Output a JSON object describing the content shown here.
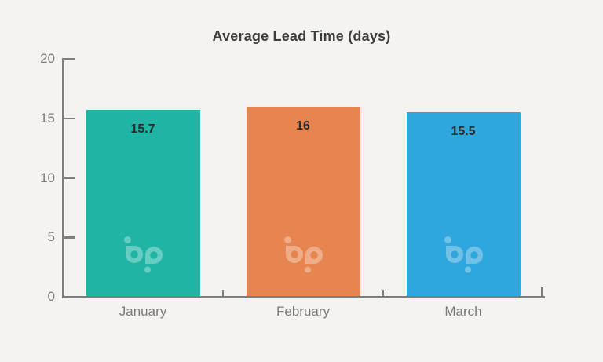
{
  "page": {
    "background_color": "#f4f3f1"
  },
  "chart_data": {
    "type": "bar",
    "title": "Average Lead Time (days)",
    "categories": [
      "January",
      "February",
      "March"
    ],
    "values": [
      15.7,
      16,
      15.5
    ],
    "value_labels": [
      "15.7",
      "16",
      "15.5"
    ],
    "series": [
      {
        "name": "Average Lead Time",
        "values": [
          15.7,
          16,
          15.5
        ]
      }
    ],
    "bar_colors": [
      "#1fb4a4",
      "#e6854f",
      "#30a6de"
    ],
    "ylim": [
      0,
      20
    ],
    "yticks": [
      0,
      5,
      10,
      15,
      20
    ],
    "xlabel": "",
    "ylabel": "",
    "grid": false,
    "legend_position": "none",
    "colors": {
      "axis": "#7d7d7d",
      "tick_labels": "#7b7b7b",
      "title": "#3d3d3d",
      "value_labels": "#2b2b2b"
    },
    "watermark": {
      "icon": "bipp-logo",
      "color": "#ffffff",
      "opacity": 0.32
    }
  }
}
